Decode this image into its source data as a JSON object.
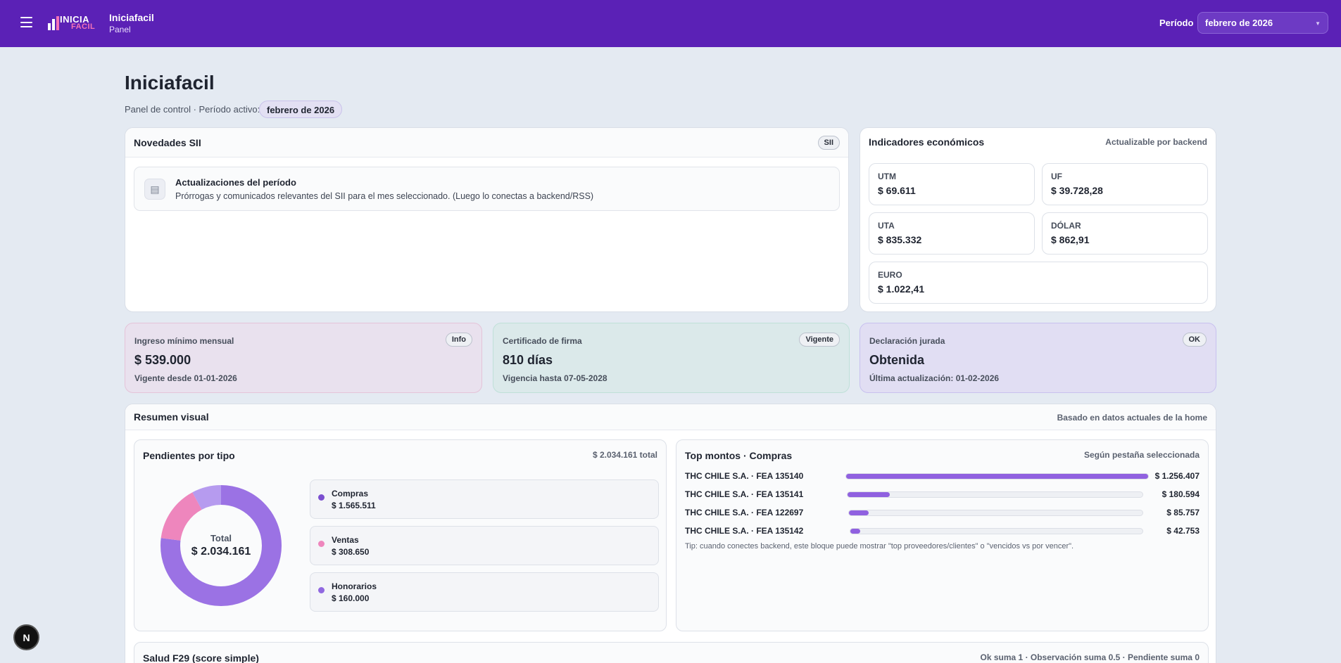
{
  "topbar": {
    "logo_line1": "INICIA",
    "logo_line2": "FACIL",
    "app_name": "Iniciafacil",
    "app_section": "Panel",
    "period_label": "Período",
    "period_value": "febrero de 2026"
  },
  "page": {
    "title": "Iniciafacil",
    "subtitle": "Panel de control · Período activo:",
    "period_chip": "febrero de 2026"
  },
  "news": {
    "title": "Novedades SII",
    "badge": "SII",
    "item_title": "Actualizaciones del período",
    "item_text": "Prórrogas y comunicados relevantes del SII para el mes seleccionado. (Luego lo conectas a backend/RSS)"
  },
  "indicators": {
    "title": "Indicadores económicos",
    "note": "Actualizable por backend",
    "items": [
      {
        "label": "UTM",
        "value": "$ 69.611"
      },
      {
        "label": "UF",
        "value": "$ 39.728,28"
      },
      {
        "label": "UTA",
        "value": "$ 835.332"
      },
      {
        "label": "DÓLAR",
        "value": "$ 862,91"
      },
      {
        "label": "EURO",
        "value": "$ 1.022,41"
      }
    ]
  },
  "cards": [
    {
      "label": "Ingreso mínimo mensual",
      "badge": "Info",
      "value": "$ 539.000",
      "sub": "Vigente desde 01-01-2026",
      "bg": "#e9e1ee",
      "border": "#e4c3d8"
    },
    {
      "label": "Certificado de firma",
      "badge": "Vigente",
      "value": "810 días",
      "sub": "Vigencia hasta 07-05-2028",
      "bg": "#dbe9ea",
      "border": "#bfe0d8"
    },
    {
      "label": "Declaración jurada",
      "badge": "OK",
      "value": "Obtenida",
      "sub": "Última actualización: 01-02-2026",
      "bg": "#e1def3",
      "border": "#c8c0ef"
    }
  ],
  "summary": {
    "title": "Resumen visual",
    "note": "Basado en datos actuales de la home",
    "pending": {
      "title": "Pendientes por tipo",
      "total_note": "$ 2.034.161 total",
      "center_label": "Total",
      "center_value": "$ 2.034.161",
      "items": [
        {
          "name": "Compras",
          "amount": "$ 1.565.511",
          "value": 1565511,
          "color": "#9b72e4"
        },
        {
          "name": "Ventas",
          "amount": "$ 308.650",
          "value": 308650,
          "color": "#ee86bd"
        },
        {
          "name": "Honorarios",
          "amount": "$ 160.000",
          "value": 160000,
          "color": "#b69bef"
        }
      ]
    },
    "top": {
      "title": "Top montos · Compras",
      "note": "Según pestaña seleccionada",
      "rows": [
        {
          "label": "THC CHILE S.A. · FEA 135140",
          "amount": "$ 1.256.407",
          "value": 1256407
        },
        {
          "label": "THC CHILE S.A. · FEA 135141",
          "amount": "$ 180.594",
          "value": 180594
        },
        {
          "label": "THC CHILE S.A. · FEA 122697",
          "amount": "$ 85.757",
          "value": 85757
        },
        {
          "label": "THC CHILE S.A. · FEA 135142",
          "amount": "$ 42.753",
          "value": 42753
        }
      ],
      "tip": "Tip: cuando conectes backend, este bloque puede mostrar \"top proveedores/clientes\" o \"vencidos vs por vencer\"."
    },
    "health": {
      "title": "Salud F29 (score simple)",
      "note": "Ok suma 1 · Observación suma 0.5 · Pendiente suma 0"
    }
  },
  "dev_badge": "N"
}
